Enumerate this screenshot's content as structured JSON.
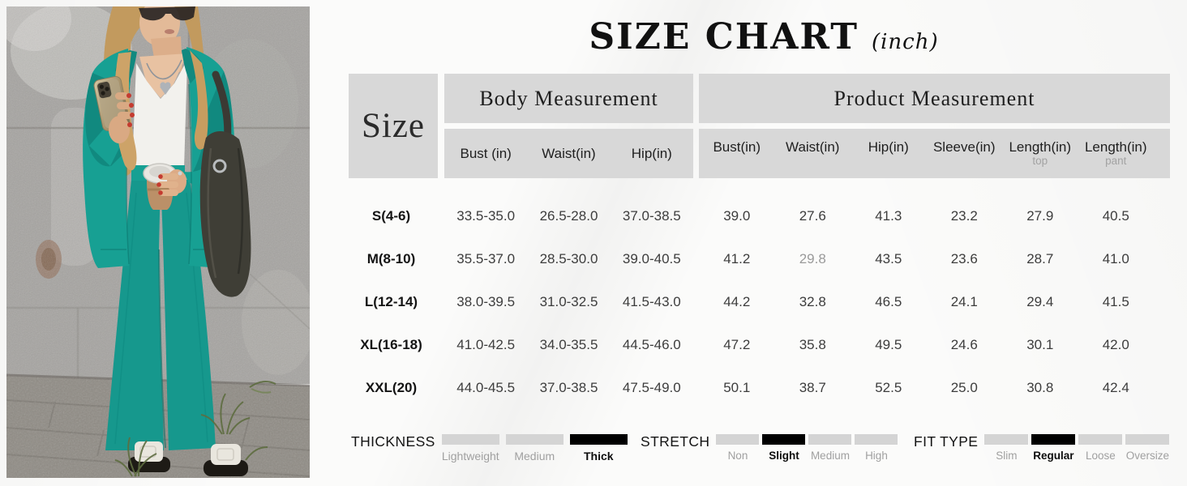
{
  "title": {
    "main": "SIZE CHART",
    "unit": "(inch)"
  },
  "table": {
    "size_header": "Size",
    "groups": [
      {
        "label": "Body Measurement",
        "columns": [
          {
            "label": "Bust (in)",
            "sub": ""
          },
          {
            "label": "Waist(in)",
            "sub": ""
          },
          {
            "label": "Hip(in)",
            "sub": ""
          }
        ]
      },
      {
        "label": "Product Measurement",
        "columns": [
          {
            "label": "Bust(in)",
            "sub": ""
          },
          {
            "label": "Waist(in)",
            "sub": ""
          },
          {
            "label": "Hip(in)",
            "sub": ""
          },
          {
            "label": "Sleeve(in)",
            "sub": ""
          },
          {
            "label": "Length(in)",
            "sub": "top"
          },
          {
            "label": "Length(in)",
            "sub": "pant"
          }
        ]
      }
    ],
    "rows": [
      {
        "size": "S(4-6)",
        "body": [
          "33.5-35.0",
          "26.5-28.0",
          "37.0-38.5"
        ],
        "product": [
          "39.0",
          "27.6",
          "41.3",
          "23.2",
          "27.9",
          "40.5"
        ]
      },
      {
        "size": "M(8-10)",
        "body": [
          "35.5-37.0",
          "28.5-30.0",
          "39.0-40.5"
        ],
        "product": [
          "41.2",
          "29.8",
          "43.5",
          "23.6",
          "28.7",
          "41.0"
        ],
        "muted_product": [
          1
        ]
      },
      {
        "size": "L(12-14)",
        "body": [
          "38.0-39.5",
          "31.0-32.5",
          "41.5-43.0"
        ],
        "product": [
          "44.2",
          "32.8",
          "46.5",
          "24.1",
          "29.4",
          "41.5"
        ]
      },
      {
        "size": "XL(16-18)",
        "body": [
          "41.0-42.5",
          "34.0-35.5",
          "44.5-46.0"
        ],
        "product": [
          "47.2",
          "35.8",
          "49.5",
          "24.6",
          "30.1",
          "42.0"
        ]
      },
      {
        "size": "XXL(20)",
        "body": [
          "44.0-45.5",
          "37.0-38.5",
          "47.5-49.0"
        ],
        "product": [
          "50.1",
          "38.7",
          "52.5",
          "25.0",
          "30.8",
          "42.4"
        ]
      }
    ]
  },
  "legend": [
    {
      "label": "THICKNESS",
      "options": [
        "Lightweight",
        "Medium",
        "Thick"
      ],
      "selected": 2
    },
    {
      "label": "STRETCH",
      "options": [
        "Non",
        "Slight",
        "Medium",
        "High"
      ],
      "selected": 1
    },
    {
      "label": "FIT TYPE",
      "options": [
        "Slim",
        "Regular",
        "Loose",
        "Oversize"
      ],
      "selected": 1
    }
  ],
  "colors": {
    "accent": "#17a093",
    "accent_dark": "#11897f",
    "header_bg": "#d8d8d8",
    "bar_gray": "#d4d4d4",
    "bar_black": "#000000",
    "muted_text": "#9a9a9a"
  }
}
